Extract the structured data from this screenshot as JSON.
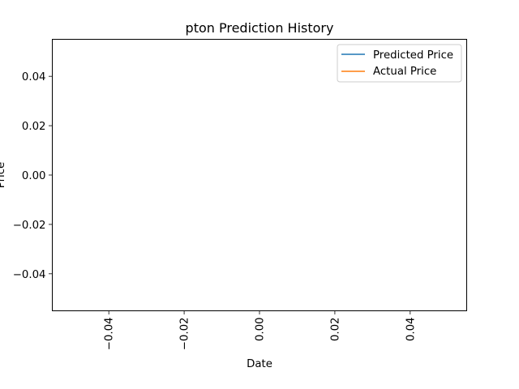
{
  "chart_data": {
    "type": "line",
    "title": "pton Prediction History",
    "xlabel": "Date",
    "ylabel": "Price",
    "xlim": [
      -0.055,
      0.055
    ],
    "ylim": [
      -0.055,
      0.055
    ],
    "x_ticks": [
      -0.04,
      -0.02,
      0.0,
      0.02,
      0.04
    ],
    "y_ticks": [
      -0.04,
      -0.02,
      0.0,
      0.02,
      0.04
    ],
    "x_tick_labels": [
      "−0.04",
      "−0.02",
      "0.00",
      "0.02",
      "0.04"
    ],
    "y_tick_labels": [
      "−0.04",
      "−0.02",
      "0.00",
      "0.02",
      "0.04"
    ],
    "grid": false,
    "legend_position": "upper right",
    "series": [
      {
        "name": "Predicted Price",
        "color": "#1f77b4",
        "x": [],
        "y": []
      },
      {
        "name": "Actual Price",
        "color": "#ff7f0e",
        "x": [],
        "y": []
      }
    ]
  }
}
